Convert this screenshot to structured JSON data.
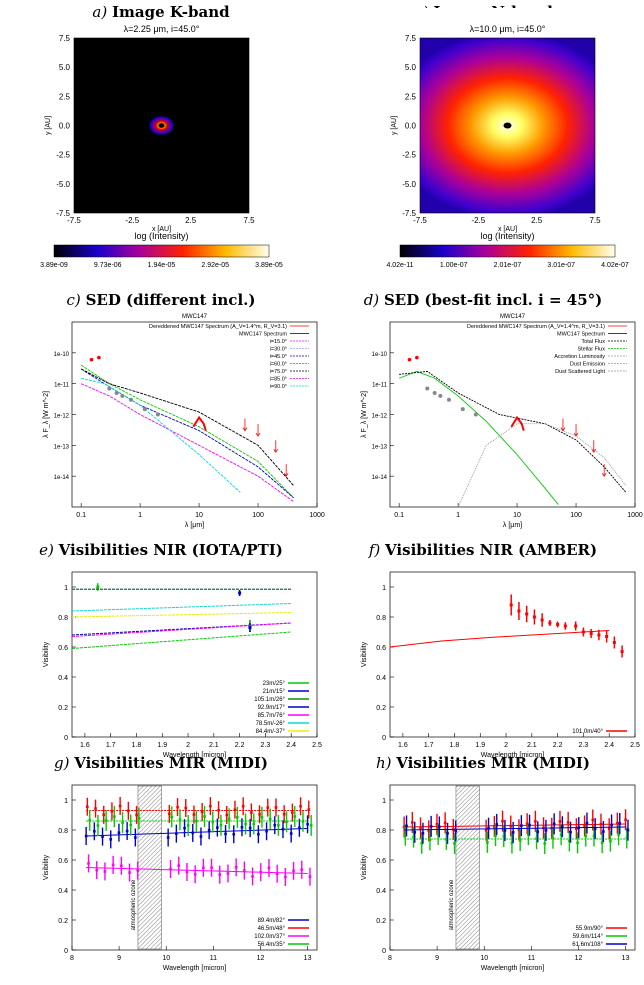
{
  "chart_data": [
    {
      "type": "heatmap",
      "label": "a)",
      "title": "Image K-band",
      "subtitle": "λ=2.25 μm, i=45.0°",
      "xlabel": "x [AU]",
      "ylabel": "y [AU]",
      "xlim": [
        -7.5,
        7.5
      ],
      "ylim": [
        -7.5,
        7.5
      ],
      "xticks": [
        "-7.5",
        "-5.0",
        "-2.5",
        "0.0",
        "2.5",
        "5.0",
        "7.5"
      ],
      "xticks_shown": [
        "-7.5",
        "-2.5",
        "2.5",
        "7.5"
      ],
      "yticks": [
        "7.5",
        "5.0",
        "2.5",
        "0.0",
        "-2.5",
        "-5.0",
        "-7.5"
      ],
      "colorbar_label": "log (Intensity)",
      "colorbar_ticks": [
        "3.89e-09",
        "9.73e-06",
        "1.94e-05",
        "2.92e-05",
        "3.89e-05"
      ]
    },
    {
      "type": "heatmap",
      "label": "b)",
      "title": "Image N-band",
      "subtitle": "λ=10.0 μm, i=45.0°",
      "xlabel": "x [AU]",
      "ylabel": "y [AU]",
      "xlim": [
        -7.5,
        7.5
      ],
      "ylim": [
        -7.5,
        7.5
      ],
      "xticks_shown": [
        "-7.5",
        "-2.5",
        "2.5",
        "7.5"
      ],
      "yticks": [
        "7.5",
        "5.0",
        "2.5",
        "0.0",
        "-2.5",
        "-5.0",
        "-7.5"
      ],
      "colorbar_label": "log (Intensity)",
      "colorbar_ticks": [
        "4.02e-11",
        "1.00e-07",
        "2.01e-07",
        "3.01e-07",
        "4.02e-07"
      ]
    },
    {
      "type": "line",
      "label": "c)",
      "title": "SED (different incl.)",
      "object": "MWC147",
      "xlabel": "λ [μm]",
      "ylabel": "λ F_λ [W m^-2]",
      "xscale": "log",
      "yscale": "log",
      "xlim": [
        0.07,
        1000
      ],
      "ylim": [
        1e-15,
        1e-09
      ],
      "xticks": [
        "0.1",
        "1",
        "10",
        "100",
        "1000"
      ],
      "yticks": [
        "1e-10",
        "1e-11",
        "1e-12",
        "1e-13",
        "1e-14"
      ],
      "legend": [
        "Dereddened MWC147 Spectrum (A_V=1.4^m, R_V=3.1)",
        "MWC147 Spectrum",
        "i=15.0°",
        "i=30.0°",
        "i=45.0°",
        "i=60.0°",
        "i=75.0°",
        "i=85.0°",
        "i=90.0°"
      ]
    },
    {
      "type": "line",
      "label": "d)",
      "title": "SED (best-fit incl. i = 45°)",
      "object": "MWC147",
      "xlabel": "λ [μm]",
      "ylabel": "λ F_λ [W m^-2]",
      "xscale": "log",
      "yscale": "log",
      "xlim": [
        0.07,
        1000
      ],
      "ylim": [
        1e-15,
        1e-09
      ],
      "xticks": [
        "0.1",
        "1",
        "10",
        "100",
        "1000"
      ],
      "yticks": [
        "1e-10",
        "1e-11",
        "1e-12",
        "1e-13",
        "1e-14"
      ],
      "legend": [
        "Dereddened MWC147 Spectrum (A_V=1.4^m, R_V=3.1)",
        "MWC147 Spectrum",
        "Total Flux",
        "Stellar Flux",
        "Accretion Luminosity",
        "Dust Emission",
        "Dust Scattered Light"
      ]
    },
    {
      "type": "line",
      "label": "e)",
      "title": "Visibilities NIR (IOTA/PTI)",
      "xlabel": "Wavelength [micron]",
      "ylabel": "Visibility",
      "xlim": [
        1.55,
        2.5
      ],
      "ylim": [
        0,
        1.1
      ],
      "xticks": [
        "1.6",
        "1.7",
        "1.8",
        "1.9",
        "2",
        "2.1",
        "2.2",
        "2.3",
        "2.4",
        "2.5"
      ],
      "yticks": [
        "0",
        "0.2",
        "0.4",
        "0.6",
        "0.8",
        "1"
      ],
      "series": [
        {
          "name": "23m/25°",
          "color": "#00cc00",
          "x": [
            1.55,
            2.4
          ],
          "y": [
            0.59,
            0.7
          ],
          "points": [
            [
              1.65,
              1.0,
              0.025
            ]
          ]
        },
        {
          "name": "21m/15°",
          "color": "#0000cc",
          "x": [
            1.55,
            2.4
          ],
          "y": [
            0.985,
            0.985
          ],
          "points": [
            [
              2.2,
              0.96,
              0.02
            ]
          ]
        },
        {
          "name": "105.1m/26°",
          "color": "#009900",
          "x": [
            1.55,
            2.4
          ],
          "y": [
            0.985,
            0.985
          ],
          "points": [
            [
              2.24,
              0.74,
              0.04
            ]
          ]
        },
        {
          "name": "92.9m/17°",
          "color": "#0000cc",
          "x": [
            1.55,
            2.4
          ],
          "y": [
            0.68,
            0.76
          ],
          "points": [
            [
              2.24,
              0.73,
              0.03
            ]
          ]
        },
        {
          "name": "85.7m/76°",
          "color": "#ff00ff",
          "x": [
            1.55,
            2.4
          ],
          "y": [
            0.67,
            0.76
          ],
          "points": []
        },
        {
          "name": "78.5m/-26°",
          "color": "#00dddd",
          "x": [
            1.55,
            2.4
          ],
          "y": [
            0.84,
            0.89
          ],
          "points": []
        },
        {
          "name": "84.4m/-37°",
          "color": "#eeee00",
          "x": [
            1.55,
            2.4
          ],
          "y": [
            0.8,
            0.83
          ],
          "points": []
        }
      ]
    },
    {
      "type": "line",
      "label": "f)",
      "title": "Visibilities NIR (AMBER)",
      "xlabel": "Wavelength [micron]",
      "ylabel": "Visibility",
      "xlim": [
        1.55,
        2.5
      ],
      "ylim": [
        0,
        1.1
      ],
      "xticks": [
        "1.6",
        "1.7",
        "1.8",
        "1.9",
        "2",
        "2.1",
        "2.2",
        "2.3",
        "2.4",
        "2.5"
      ],
      "yticks": [
        "0",
        "0.2",
        "0.4",
        "0.6",
        "0.8",
        "1"
      ],
      "series": [
        {
          "name": "101.0m/40°",
          "color": "#ff0000",
          "model_x": [
            1.55,
            1.75,
            1.95,
            2.15,
            2.4
          ],
          "model_y": [
            0.6,
            0.64,
            0.665,
            0.685,
            0.71
          ],
          "points": [
            [
              2.02,
              0.88,
              0.07
            ],
            [
              2.05,
              0.84,
              0.06
            ],
            [
              2.08,
              0.82,
              0.055
            ],
            [
              2.11,
              0.8,
              0.05
            ],
            [
              2.14,
              0.78,
              0.045
            ],
            [
              2.17,
              0.76,
              0.02
            ],
            [
              2.2,
              0.75,
              0.02
            ],
            [
              2.23,
              0.74,
              0.025
            ],
            [
              2.27,
              0.74,
              0.03
            ],
            [
              2.3,
              0.7,
              0.03
            ],
            [
              2.33,
              0.69,
              0.03
            ],
            [
              2.36,
              0.68,
              0.035
            ],
            [
              2.39,
              0.67,
              0.04
            ],
            [
              2.42,
              0.63,
              0.04
            ],
            [
              2.45,
              0.57,
              0.04
            ]
          ]
        }
      ]
    },
    {
      "type": "line",
      "label": "g)",
      "title": "Visibilities MIR (MIDI)",
      "xlabel": "Wavelength [micron]",
      "ylabel": "Visibility",
      "xlim": [
        8,
        13.2
      ],
      "ylim": [
        0,
        1.1
      ],
      "xticks": [
        "8",
        "9",
        "10",
        "11",
        "12",
        "13"
      ],
      "yticks": [
        "0",
        "0.2",
        "0.4",
        "0.6",
        "0.8",
        "1"
      ],
      "shaded_region": {
        "x": [
          9.4,
          9.9
        ],
        "label": "atmospheric ozone"
      },
      "series": [
        {
          "name": "89.4m/82°",
          "color": "#0000cc",
          "level": 0.76,
          "err": 0.06,
          "drift": 0.05
        },
        {
          "name": "46.5m/48°",
          "color": "#ff0000",
          "level": 0.93,
          "err": 0.06,
          "drift": 0.0
        },
        {
          "name": "102.0m/37°",
          "color": "#ff00ff",
          "level": 0.55,
          "err": 0.06,
          "drift": -0.04
        },
        {
          "name": "56.4m/35°",
          "color": "#00cc00",
          "level": 0.86,
          "err": 0.07,
          "drift": 0.0
        }
      ]
    },
    {
      "type": "line",
      "label": "h)",
      "title": "Visibilities MIR (MIDI)",
      "xlabel": "Wavelength [micron]",
      "ylabel": "Visibility",
      "xlim": [
        8,
        13.2
      ],
      "ylim": [
        0,
        1.1
      ],
      "xticks": [
        "8",
        "9",
        "10",
        "11",
        "12",
        "13"
      ],
      "yticks": [
        "0",
        "0.2",
        "0.4",
        "0.6",
        "0.8",
        "1"
      ],
      "shaded_region": {
        "x": [
          9.4,
          9.9
        ],
        "label": "atmospheric ozone"
      },
      "series": [
        {
          "name": "55.9m/90°",
          "color": "#ff0000",
          "level": 0.82,
          "err": 0.07,
          "drift": 0.02
        },
        {
          "name": "59.6m/114°",
          "color": "#00cc00",
          "level": 0.74,
          "err": 0.07,
          "drift": 0.0
        },
        {
          "name": "61.6m/108°",
          "color": "#0000cc",
          "level": 0.8,
          "err": 0.07,
          "drift": 0.02
        }
      ]
    }
  ]
}
